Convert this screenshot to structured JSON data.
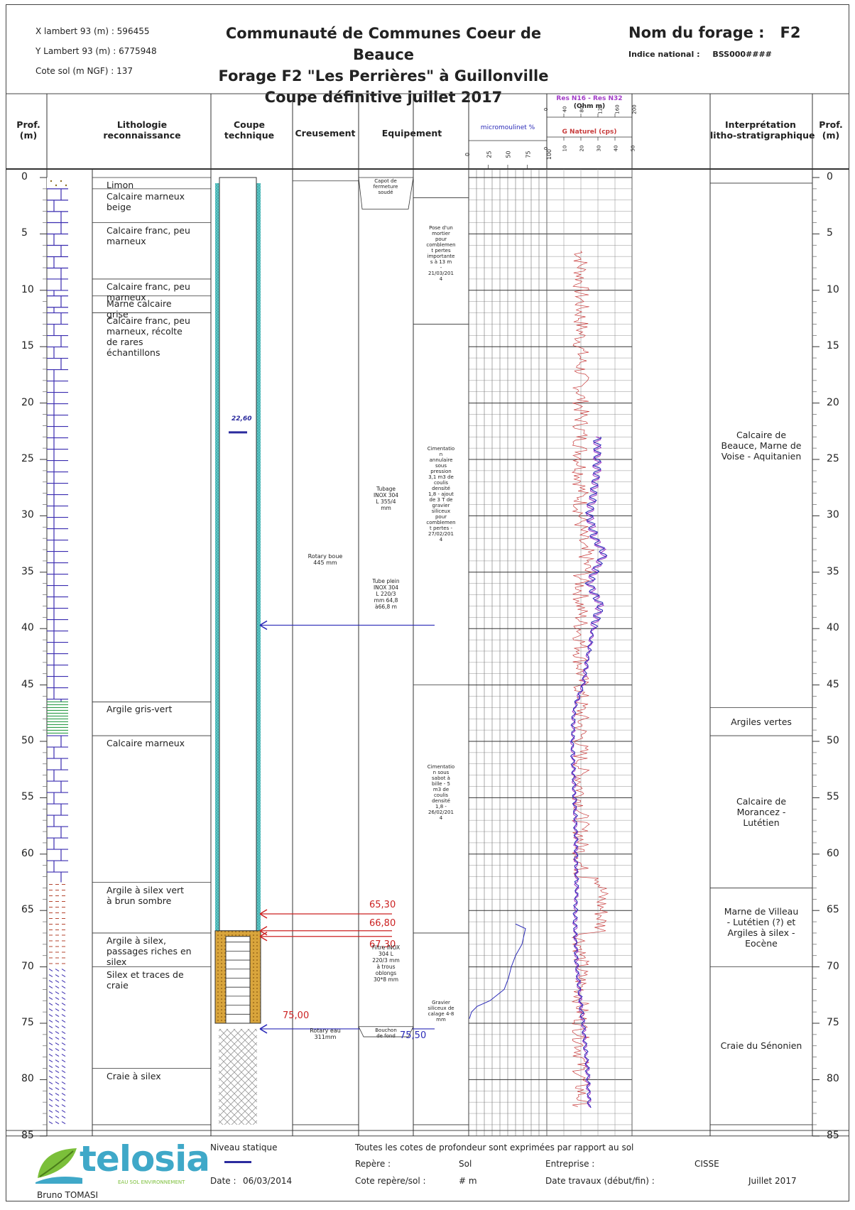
{
  "header": {
    "x_lambert": "X lambert 93 (m) :  596455",
    "y_lambert": "Y Lambert 93 (m) :  6775948",
    "cote_sol": "Cote sol (m NGF) :  137",
    "title_line1": "Communauté de Communes Coeur de Beauce",
    "title_line2": "Forage F2 \"Les Perrières\" à Guillonville",
    "title_line3": "Coupe définitive juillet 2017",
    "forage_label": "Nom du forage :   F2",
    "indice_label": "Indice national :",
    "indice_value": "BSS000####"
  },
  "columns": {
    "prof_left": "Prof.\n(m)",
    "lithologie": "Lithologie\nreconnaissance",
    "coupe": "Coupe\ntechnique",
    "creusement": "Creusement",
    "equipement": "Equipement",
    "micromoulinet": "micromoulinet %",
    "micromoulinet_ticks": [
      "0",
      "25",
      "50",
      "75",
      "100"
    ],
    "res_title": "Res N16 - Res N32",
    "res_unit": "(Ohm m)",
    "res_ticks": [
      "0",
      "40",
      "80",
      "120",
      "160",
      "200"
    ],
    "gamma_title": "G Naturel (cps)",
    "gamma_ticks": [
      "0",
      "10",
      "20",
      "30",
      "40",
      "50"
    ],
    "interpretation": "Interprétation\nlitho-stratigraphique",
    "prof_right": "Prof.\n(m)"
  },
  "depth_ticks": [
    "0",
    "5",
    "10",
    "15",
    "20",
    "25",
    "30",
    "35",
    "40",
    "45",
    "50",
    "55",
    "60",
    "65",
    "70",
    "75",
    "80",
    "85"
  ],
  "lithology": [
    {
      "label": "Limon",
      "top": 0,
      "bottom": 1
    },
    {
      "label": "Calcaire marneux\nbeige",
      "top": 1,
      "bottom": 4
    },
    {
      "label": "Calcaire franc, peu\nmarneux",
      "top": 4,
      "bottom": 9
    },
    {
      "label": "Calcaire franc, peu\nmarneux",
      "top": 9,
      "bottom": 10.5
    },
    {
      "label": "Marne calcaire\ngrise",
      "top": 10.5,
      "bottom": 12
    },
    {
      "label": "Calcaire franc, peu\nmarneux, récolte\nde rares\néchantillons",
      "top": 12,
      "bottom": 46.5
    },
    {
      "label": "Argile gris-vert",
      "top": 46.5,
      "bottom": 49.5
    },
    {
      "label": "Calcaire marneux",
      "top": 49.5,
      "bottom": 62.5
    },
    {
      "label": "Argile à silex vert\nà brun sombre",
      "top": 62.5,
      "bottom": 67
    },
    {
      "label": "Argile à silex,\npassages riches en\nsilex",
      "top": 67,
      "bottom": 70
    },
    {
      "label": "Silex et traces de\ncraie",
      "top": 70,
      "bottom": 79
    },
    {
      "label": "Craie à silex",
      "top": 79,
      "bottom": 84
    }
  ],
  "technical": {
    "static_level": "22,60",
    "depth_65": "65,30",
    "depth_66": "66,80",
    "depth_67": "67,30",
    "depth_75": "75,00",
    "depth_755": "75,50"
  },
  "creusement": {
    "rotary_boue": "Rotary boue\n445 mm",
    "rotary_eau": "Rotary eau\n311mm"
  },
  "equipement": {
    "capot": "Capot de\nfermeture\nsoudé",
    "tubage": "Tubage\nINOX 304\nL 355/4\nmm",
    "tube_plein": "Tube plein\nINOX 304\nL 220/3\nmm 64,8\nà66,8 m",
    "filtre": "Filtre INOX\n304 L\n220/3 mm\nà trous\noblongs\n30*8 mm",
    "bouchon": "Bouchon\nde fond",
    "mortier": "Pose d'un\nmortier\npour\ncomblemen\nt pertes\nimportante\ns à 13 m\n-\n21/03/201\n4",
    "cimentation1": "Cimentatio\nn\nannulaire\nsous\npression\n3,1 m3 de\ncoulis\ndensité\n1,8 - ajout\nde 3 T de\ngravier\nsiliceux\npour\ncomblemen\nt pertes -\n27/02/201\n4",
    "cimentation2": "Cimentatio\nn sous\nsabot à\nbille - 5\nm3 de\ncoulis\ndensité\n1,8 -\n26/02/201\n4",
    "gravier": "Gravier\nsiliceux de\ncalage 4-8\nmm"
  },
  "interpretation": [
    {
      "label": "Calcaire de\nBeauce, Marne de\nVoise - Aquitanien",
      "top": 0.5,
      "bottom": 47
    },
    {
      "label": "Argiles vertes",
      "top": 47,
      "bottom": 49.5
    },
    {
      "label": "Calcaire de\nMorancez -\nLutétien",
      "top": 49.5,
      "bottom": 63
    },
    {
      "label": "Marne de Villeau\n- Lutétien (?) et\nArgiles à silex -\nEocène",
      "top": 63,
      "bottom": 70
    },
    {
      "label": "Craie du Sénonien",
      "top": 70,
      "bottom": 84
    }
  ],
  "footer": {
    "logo_text": "telosia",
    "logo_tagline": "EAU SOL ENVIRONNEMENT",
    "author": "Bruno TOMASI",
    "niveau_statique": "Niveau statique",
    "date_label": "Date :",
    "date_value": "06/03/2014",
    "note": "Toutes les cotes de profondeur sont exprimées par rapport au sol",
    "repere_label": "Repère :",
    "repere_value": "Sol",
    "cote_label": "Cote repère/sol :",
    "cote_value": "# m",
    "entreprise_label": "Entreprise :",
    "entreprise_value": "CISSE",
    "travaux_label": "Date travaux (début/fin) :",
    "travaux_value": "Juillet 2017"
  },
  "colors": {
    "casing_fill": "#5ec8c8",
    "gravel_fill": "#d9a53c",
    "resistivity_n16": "#2b2bb8",
    "resistivity_n32": "#a23cc8",
    "gamma": "#c83c3c",
    "limestone": "#3a2cb0",
    "clay_green": "#2e9e4a",
    "flint": "#b5452f"
  }
}
